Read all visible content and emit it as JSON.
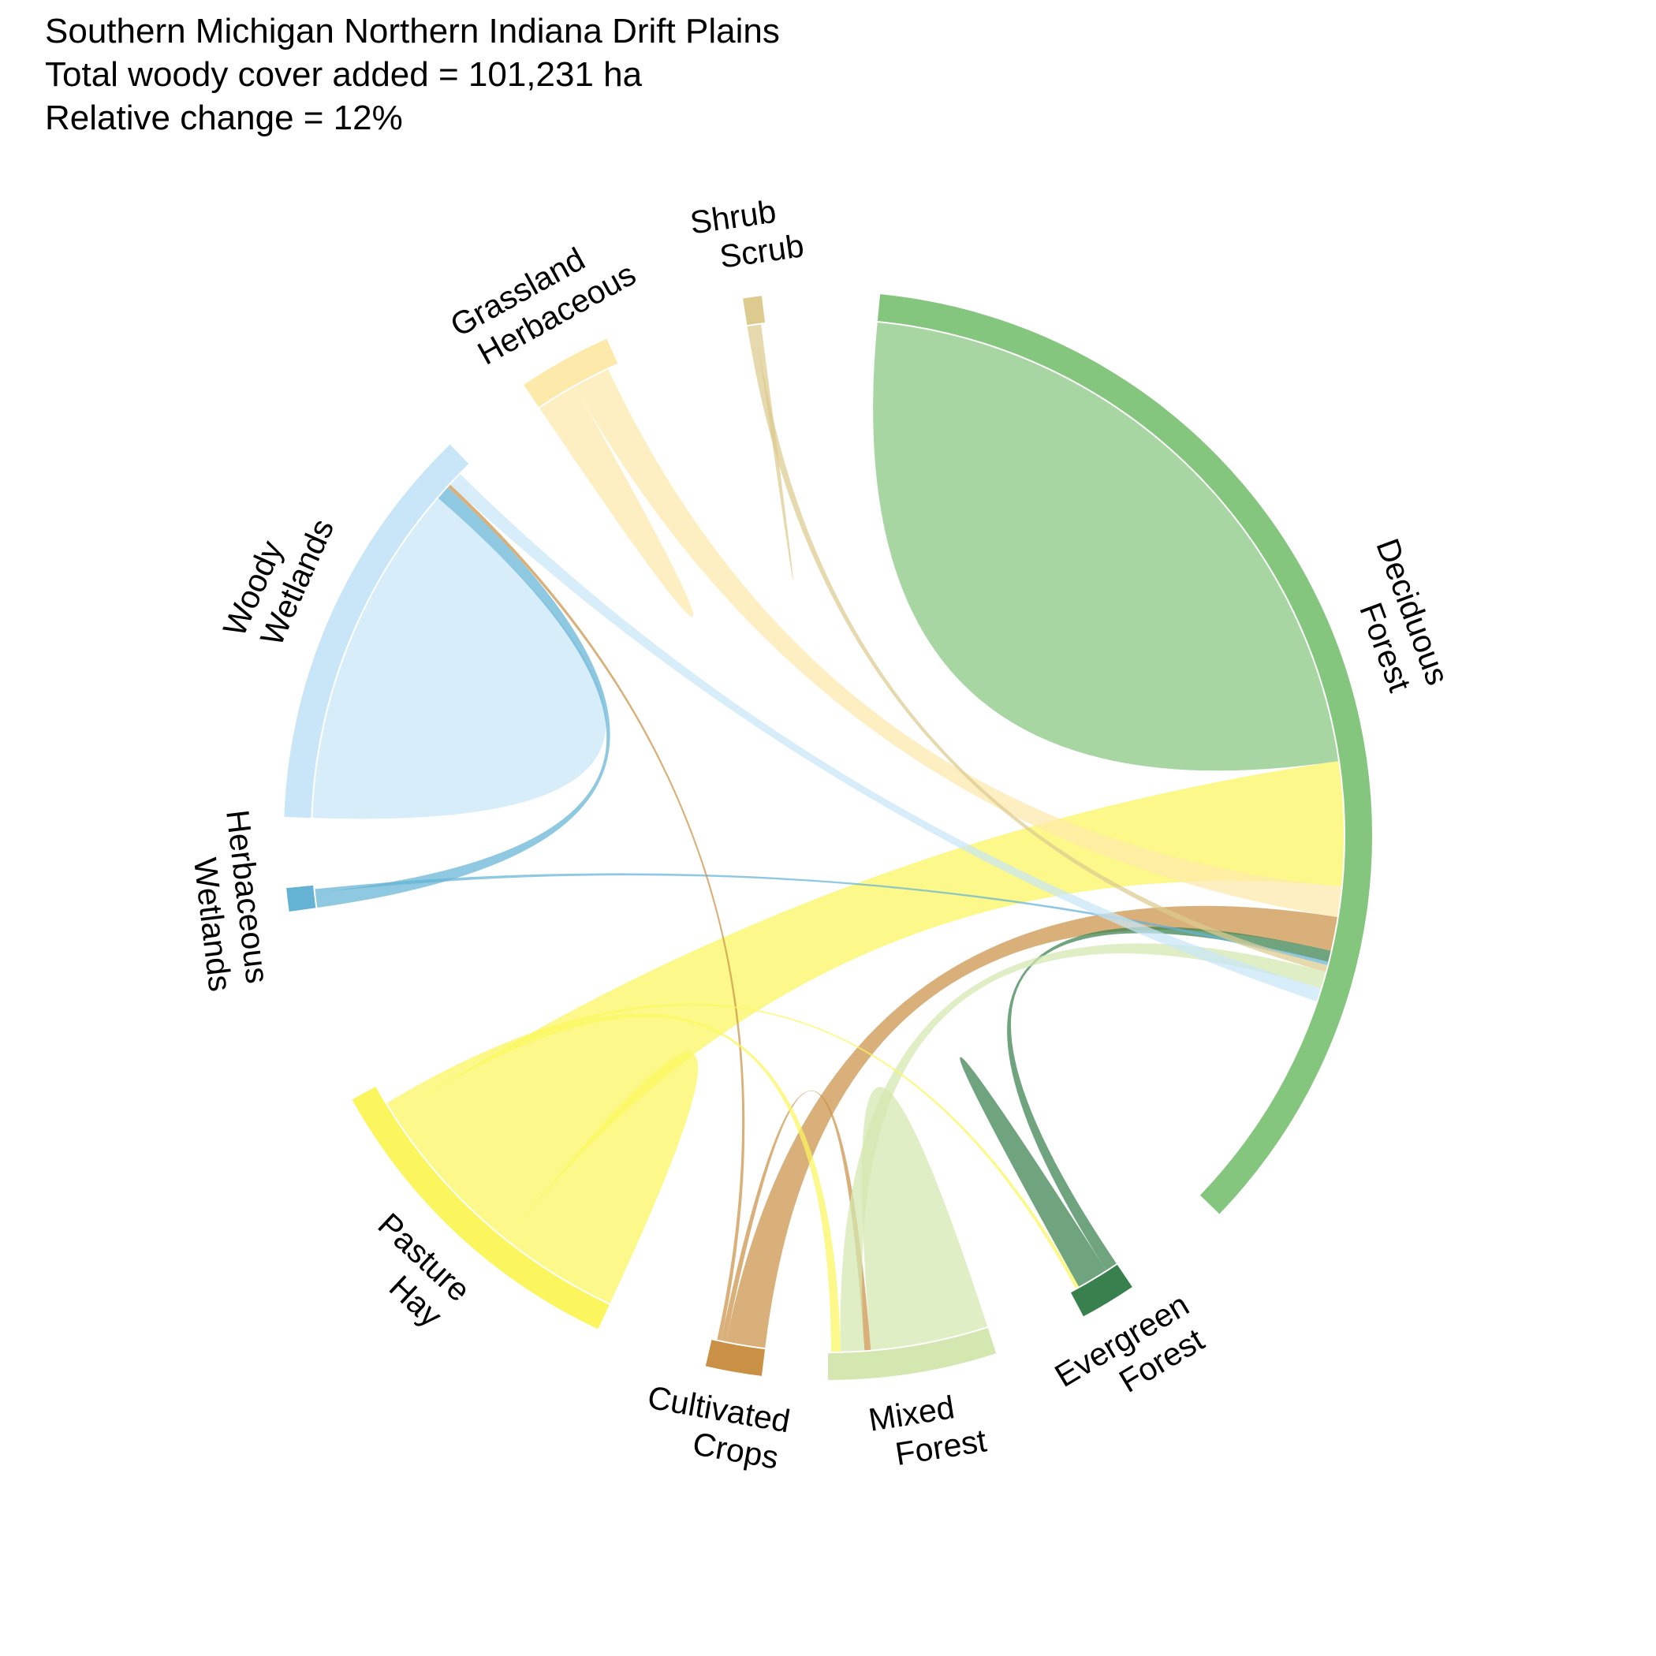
{
  "header": {
    "line1": "Southern Michigan Northern Indiana Drift Plains",
    "line2": "Total woody cover added = 101,231 ha",
    "line3": "Relative change = 12%"
  },
  "chart_data": {
    "type": "chord",
    "title": "Southern Michigan Northern Indiana Drift Plains",
    "subtitle": [
      "Total woody cover added = 101,231 ha",
      "Relative change = 12%"
    ],
    "sectors": [
      {
        "id": "deciduous",
        "label": [
          "Deciduous",
          "Forest"
        ],
        "color": "#85C67E",
        "value": 101231
      },
      {
        "id": "evergreen",
        "label": [
          "Evergreen",
          "Forest"
        ],
        "color": "#38814E",
        "value": 4400
      },
      {
        "id": "mixed",
        "label": [
          "Mixed",
          "Forest"
        ],
        "color": "#D4E7B0",
        "value": 10200
      },
      {
        "id": "crops",
        "label": [
          "Cultivated",
          "Crops"
        ],
        "color": "#CA9146",
        "value": 4100
      },
      {
        "id": "pasture",
        "label": [
          "Pasture",
          "Hay"
        ],
        "color": "#FBF65D",
        "value": 21200
      },
      {
        "id": "herbwet",
        "label": [
          "Herbaceous",
          "Wetlands"
        ],
        "color": "#64B3D5",
        "value": 1800
      },
      {
        "id": "woodywet",
        "label": [
          "Woody",
          "Wetlands"
        ],
        "color": "#C8E6F8",
        "value": 32800
      },
      {
        "id": "grassland",
        "label": [
          "Grassland",
          "Herbaceous"
        ],
        "color": "#FDE9AA",
        "value": 6500
      },
      {
        "id": "shrub",
        "label": [
          "Shrub",
          "Scrub"
        ],
        "color": "#DCCA8F",
        "value": 1300
      }
    ],
    "flows": [
      {
        "from": "deciduous",
        "to": "deciduous",
        "value": 60000
      },
      {
        "from": "woodywet",
        "to": "woodywet",
        "value": 29000
      },
      {
        "from": "pasture",
        "to": "pasture",
        "value": 8000
      },
      {
        "from": "pasture",
        "to": "deciduous",
        "value": 11000
      },
      {
        "from": "mixed",
        "to": "mixed",
        "value": 7500
      },
      {
        "from": "grassland",
        "to": "grassland",
        "value": 3000
      },
      {
        "from": "grassland",
        "to": "deciduous",
        "value": 2700
      },
      {
        "from": "crops",
        "to": "deciduous",
        "value": 3000
      },
      {
        "from": "evergreen",
        "to": "deciduous",
        "value": 1000
      },
      {
        "from": "evergreen",
        "to": "evergreen",
        "value": 2600
      },
      {
        "from": "herbwet",
        "to": "woodywet",
        "value": 1200
      },
      {
        "from": "herbwet",
        "to": "deciduous",
        "value": 300
      },
      {
        "from": "shrub",
        "to": "deciduous",
        "value": 600
      },
      {
        "from": "shrub",
        "to": "shrub",
        "value": 400
      },
      {
        "from": "crops",
        "to": "mixed",
        "value": 400
      },
      {
        "from": "crops",
        "to": "woodywet",
        "value": 300
      },
      {
        "from": "mixed",
        "to": "deciduous",
        "value": 1500
      },
      {
        "from": "woodywet",
        "to": "deciduous",
        "value": 1200
      },
      {
        "from": "pasture",
        "to": "mixed",
        "value": 600
      },
      {
        "from": "pasture",
        "to": "evergreen",
        "value": 300
      }
    ]
  }
}
